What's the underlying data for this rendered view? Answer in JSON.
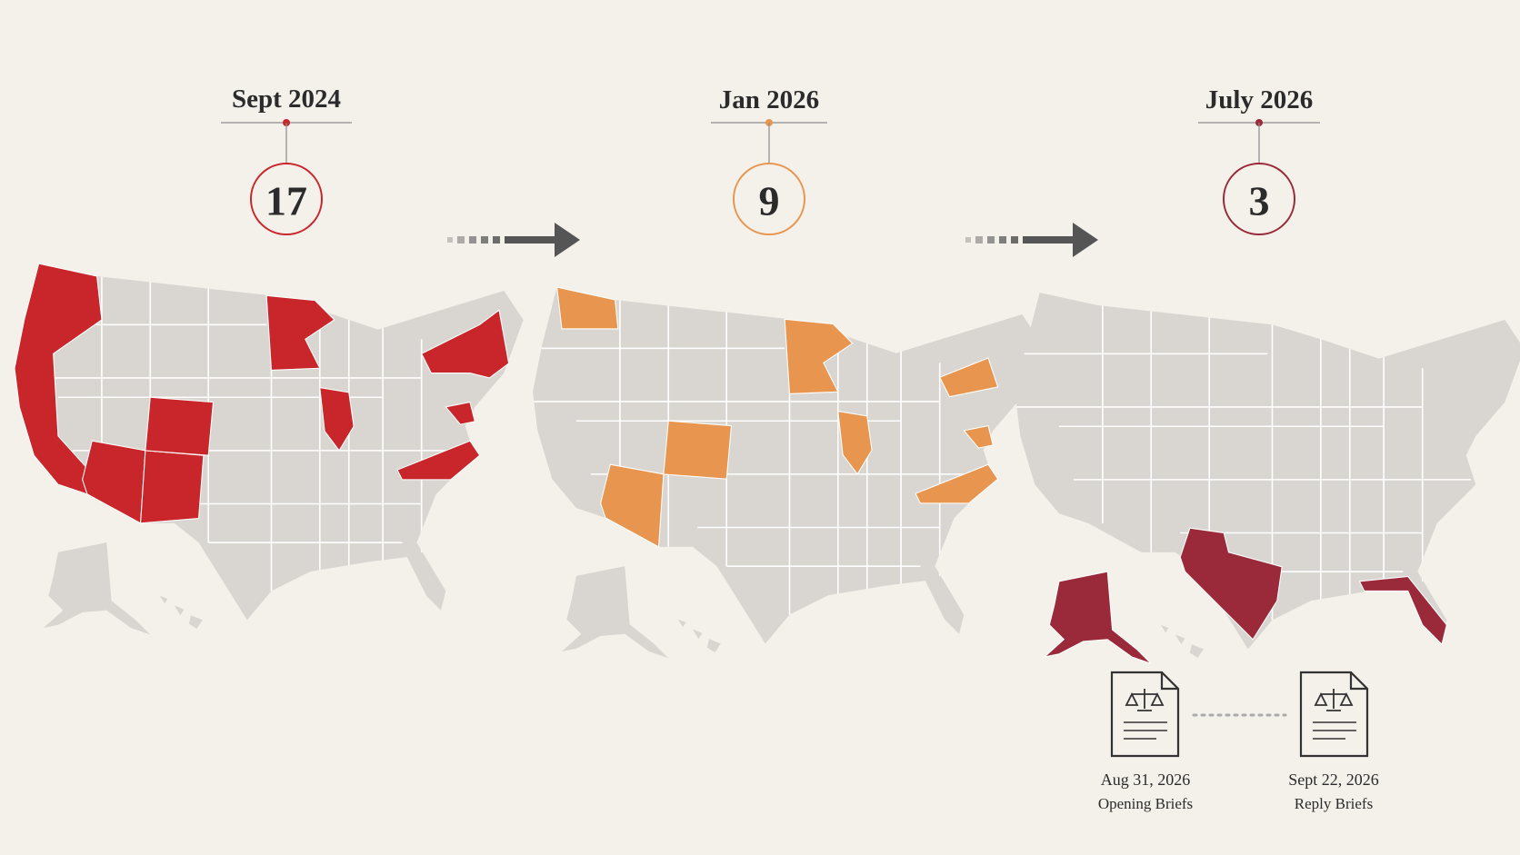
{
  "panels": [
    {
      "date": "Sept 2024",
      "count": 17,
      "color": "#c8262b"
    },
    {
      "date": "Jan 2026",
      "count": 9,
      "color": "#e8964f"
    },
    {
      "date": "July 2026",
      "count": 3,
      "color": "#9a2a3a"
    }
  ],
  "briefs": [
    {
      "date": "Aug 31, 2026",
      "label": "Opening Briefs"
    },
    {
      "date": "Sept 22, 2026",
      "label": "Reply Briefs"
    }
  ]
}
